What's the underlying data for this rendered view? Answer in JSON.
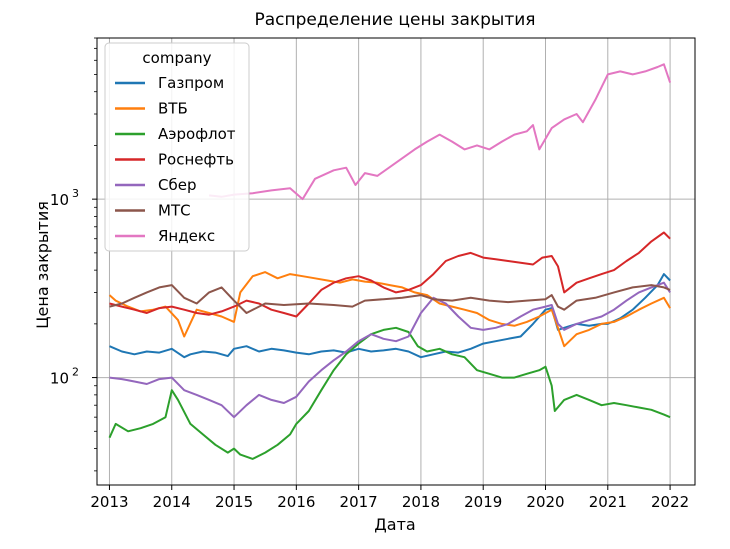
{
  "chart_data": {
    "type": "line",
    "title": "Распределение цены закрытия",
    "xlabel": "Дата",
    "ylabel": "Цена закрытия",
    "y_scale": "log",
    "ylim": [
      25,
      8000
    ],
    "xlim": [
      2012.8,
      2022.4
    ],
    "x_ticks": [
      2013,
      2014,
      2015,
      2016,
      2017,
      2018,
      2019,
      2020,
      2021,
      2022
    ],
    "y_ticks": [
      {
        "value": 100,
        "label": "10",
        "exp": "2"
      },
      {
        "value": 1000,
        "label": "10",
        "exp": "3"
      }
    ],
    "grid": true,
    "legend": {
      "title": "company",
      "placement": "top-left"
    },
    "series": [
      {
        "name": "Газпром",
        "color": "#1f77b4",
        "x": [
          2013.0,
          2013.2,
          2013.4,
          2013.6,
          2013.8,
          2014.0,
          2014.2,
          2014.3,
          2014.5,
          2014.7,
          2014.9,
          2015.0,
          2015.2,
          2015.4,
          2015.6,
          2015.8,
          2016.0,
          2016.2,
          2016.4,
          2016.6,
          2016.8,
          2017.0,
          2017.2,
          2017.4,
          2017.6,
          2017.8,
          2018.0,
          2018.2,
          2018.4,
          2018.6,
          2018.8,
          2019.0,
          2019.2,
          2019.4,
          2019.6,
          2019.8,
          2020.0,
          2020.1,
          2020.2,
          2020.3,
          2020.5,
          2020.7,
          2020.9,
          2021.0,
          2021.2,
          2021.4,
          2021.6,
          2021.8,
          2021.9,
          2022.0
        ],
        "values": [
          150,
          140,
          135,
          140,
          138,
          145,
          130,
          135,
          140,
          138,
          132,
          145,
          150,
          140,
          145,
          142,
          138,
          135,
          140,
          142,
          138,
          145,
          140,
          142,
          145,
          140,
          130,
          135,
          140,
          138,
          145,
          155,
          160,
          165,
          170,
          200,
          240,
          245,
          185,
          190,
          200,
          195,
          200,
          200,
          215,
          240,
          280,
          330,
          380,
          350
        ]
      },
      {
        "name": "ВТБ",
        "color": "#ff7f0e",
        "x": [
          2013.0,
          2013.1,
          2013.3,
          2013.5,
          2013.7,
          2013.9,
          2014.1,
          2014.2,
          2014.4,
          2014.6,
          2014.8,
          2015.0,
          2015.1,
          2015.3,
          2015.5,
          2015.7,
          2015.9,
          2016.1,
          2016.3,
          2016.5,
          2016.7,
          2016.9,
          2017.1,
          2017.3,
          2017.5,
          2017.7,
          2017.9,
          2018.1,
          2018.3,
          2018.5,
          2018.7,
          2018.9,
          2019.1,
          2019.3,
          2019.5,
          2019.7,
          2019.9,
          2020.1,
          2020.2,
          2020.3,
          2020.5,
          2020.7,
          2020.9,
          2021.1,
          2021.3,
          2021.5,
          2021.7,
          2021.9,
          2022.0
        ],
        "values": [
          290,
          270,
          250,
          235,
          240,
          250,
          210,
          170,
          240,
          230,
          220,
          205,
          300,
          370,
          390,
          360,
          380,
          370,
          360,
          350,
          340,
          355,
          345,
          340,
          330,
          320,
          300,
          290,
          260,
          250,
          240,
          230,
          210,
          200,
          195,
          205,
          220,
          240,
          190,
          150,
          175,
          185,
          200,
          205,
          220,
          240,
          260,
          280,
          245
        ]
      },
      {
        "name": "Аэрофлот",
        "color": "#2ca02c",
        "x": [
          2013.0,
          2013.1,
          2013.3,
          2013.5,
          2013.7,
          2013.9,
          2014.0,
          2014.1,
          2014.3,
          2014.5,
          2014.7,
          2014.9,
          2015.0,
          2015.1,
          2015.3,
          2015.5,
          2015.7,
          2015.9,
          2016.0,
          2016.2,
          2016.4,
          2016.6,
          2016.8,
          2017.0,
          2017.2,
          2017.4,
          2017.6,
          2017.8,
          2017.95,
          2018.1,
          2018.3,
          2018.5,
          2018.7,
          2018.9,
          2019.1,
          2019.3,
          2019.5,
          2019.7,
          2019.9,
          2020.0,
          2020.1,
          2020.15,
          2020.3,
          2020.5,
          2020.7,
          2020.9,
          2021.1,
          2021.3,
          2021.5,
          2021.7,
          2021.9,
          2022.0
        ],
        "values": [
          46,
          55,
          50,
          52,
          55,
          60,
          85,
          75,
          55,
          48,
          42,
          38,
          40,
          37,
          35,
          38,
          42,
          48,
          55,
          65,
          85,
          110,
          135,
          155,
          175,
          185,
          190,
          180,
          150,
          140,
          145,
          135,
          130,
          110,
          105,
          100,
          100,
          105,
          110,
          115,
          90,
          65,
          75,
          80,
          75,
          70,
          72,
          70,
          68,
          66,
          62,
          60
        ]
      },
      {
        "name": "Роснефть",
        "color": "#d62728",
        "x": [
          2013.0,
          2013.2,
          2013.4,
          2013.6,
          2013.8,
          2014.0,
          2014.2,
          2014.4,
          2014.6,
          2014.8,
          2015.0,
          2015.2,
          2015.4,
          2015.6,
          2015.8,
          2016.0,
          2016.2,
          2016.4,
          2016.6,
          2016.8,
          2017.0,
          2017.2,
          2017.4,
          2017.6,
          2017.8,
          2018.0,
          2018.2,
          2018.4,
          2018.6,
          2018.8,
          2019.0,
          2019.2,
          2019.4,
          2019.6,
          2019.8,
          2019.95,
          2020.1,
          2020.2,
          2020.3,
          2020.5,
          2020.7,
          2020.9,
          2021.1,
          2021.3,
          2021.5,
          2021.7,
          2021.9,
          2022.0
        ],
        "values": [
          260,
          250,
          240,
          230,
          245,
          250,
          240,
          230,
          225,
          235,
          250,
          270,
          260,
          240,
          230,
          220,
          260,
          310,
          340,
          360,
          370,
          350,
          320,
          300,
          310,
          330,
          380,
          450,
          480,
          500,
          470,
          460,
          450,
          440,
          430,
          470,
          480,
          420,
          300,
          340,
          360,
          380,
          400,
          450,
          500,
          580,
          650,
          600
        ]
      },
      {
        "name": "Сбер",
        "color": "#9467bd",
        "x": [
          2013.0,
          2013.2,
          2013.4,
          2013.6,
          2013.8,
          2014.0,
          2014.2,
          2014.4,
          2014.6,
          2014.8,
          2015.0,
          2015.2,
          2015.4,
          2015.6,
          2015.8,
          2016.0,
          2016.2,
          2016.4,
          2016.6,
          2016.8,
          2017.0,
          2017.2,
          2017.4,
          2017.6,
          2017.8,
          2018.0,
          2018.2,
          2018.4,
          2018.6,
          2018.8,
          2019.0,
          2019.2,
          2019.4,
          2019.6,
          2019.8,
          2020.0,
          2020.1,
          2020.2,
          2020.3,
          2020.5,
          2020.7,
          2020.9,
          2021.1,
          2021.3,
          2021.5,
          2021.7,
          2021.9,
          2022.0
        ],
        "values": [
          100,
          98,
          95,
          92,
          98,
          100,
          85,
          80,
          75,
          70,
          60,
          70,
          80,
          75,
          72,
          78,
          95,
          110,
          125,
          140,
          160,
          175,
          165,
          160,
          170,
          230,
          280,
          260,
          220,
          190,
          185,
          190,
          200,
          220,
          240,
          250,
          255,
          200,
          185,
          200,
          210,
          220,
          240,
          270,
          300,
          320,
          340,
          300
        ]
      },
      {
        "name": "МТС",
        "color": "#8c564b",
        "x": [
          2013.0,
          2013.2,
          2013.4,
          2013.6,
          2013.8,
          2014.0,
          2014.2,
          2014.4,
          2014.6,
          2014.8,
          2015.0,
          2015.2,
          2015.5,
          2015.8,
          2016.2,
          2016.6,
          2016.9,
          2017.1,
          2017.4,
          2017.7,
          2018.0,
          2018.2,
          2018.5,
          2018.8,
          2019.1,
          2019.4,
          2019.7,
          2020.0,
          2020.1,
          2020.2,
          2020.3,
          2020.5,
          2020.8,
          2021.1,
          2021.4,
          2021.7,
          2021.9,
          2022.0
        ],
        "values": [
          250,
          260,
          280,
          300,
          320,
          330,
          280,
          260,
          300,
          320,
          270,
          230,
          260,
          255,
          260,
          255,
          250,
          270,
          275,
          280,
          290,
          275,
          270,
          280,
          270,
          265,
          270,
          275,
          290,
          250,
          240,
          270,
          280,
          300,
          320,
          330,
          320,
          310
        ]
      },
      {
        "name": "Яндекс",
        "color": "#e377c2",
        "x": [
          2014.6,
          2014.8,
          2015.0,
          2015.3,
          2015.6,
          2015.9,
          2016.1,
          2016.3,
          2016.6,
          2016.8,
          2016.95,
          2017.1,
          2017.3,
          2017.6,
          2017.9,
          2018.1,
          2018.3,
          2018.5,
          2018.7,
          2018.9,
          2019.1,
          2019.3,
          2019.5,
          2019.7,
          2019.8,
          2019.9,
          2020.1,
          2020.3,
          2020.5,
          2020.6,
          2020.8,
          2021.0,
          2021.2,
          2021.4,
          2021.6,
          2021.8,
          2021.9,
          2022.0
        ],
        "values": [
          1050,
          1030,
          1060,
          1080,
          1120,
          1150,
          1000,
          1300,
          1450,
          1500,
          1200,
          1400,
          1350,
          1600,
          1900,
          2100,
          2300,
          2100,
          1900,
          2000,
          1900,
          2100,
          2300,
          2400,
          2600,
          1900,
          2500,
          2800,
          3000,
          2700,
          3600,
          5000,
          5200,
          5000,
          5200,
          5500,
          5700,
          4500
        ]
      }
    ]
  }
}
